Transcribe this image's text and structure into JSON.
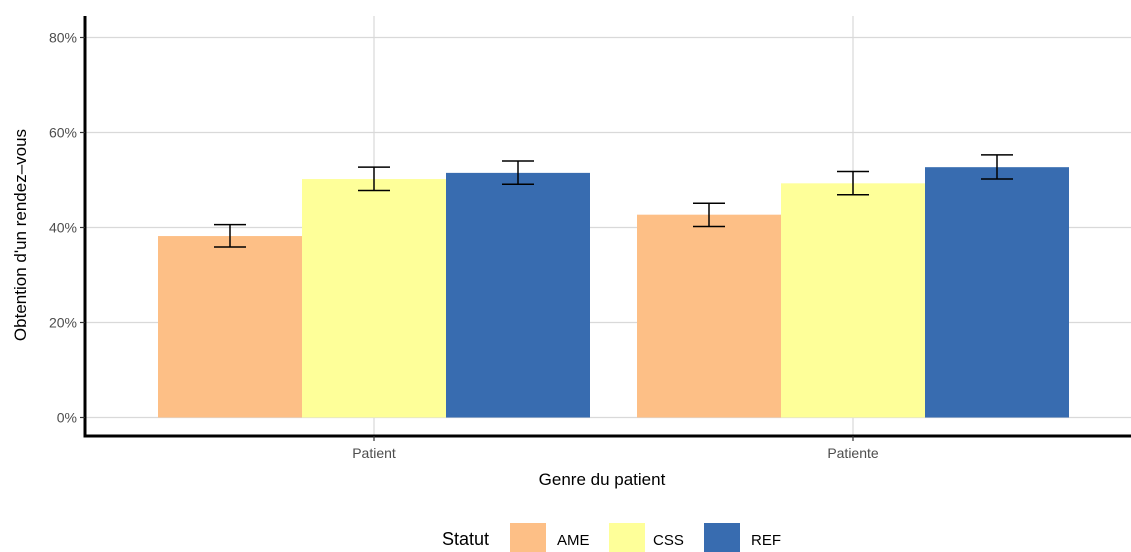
{
  "chart_data": {
    "type": "bar",
    "xlabel": "Genre du patient",
    "ylabel": "Obtention d'un rendez–vous",
    "ylim": [
      0,
      0.8
    ],
    "yticks": [
      0,
      0.2,
      0.4,
      0.6,
      0.8
    ],
    "ytick_labels": [
      "0%",
      "20%",
      "40%",
      "60%",
      "80%"
    ],
    "categories": [
      "Patient",
      "Patiente"
    ],
    "series": [
      {
        "name": "AME",
        "color": "#FDBF86",
        "values": [
          0.382,
          0.427
        ],
        "err_low": [
          0.359,
          0.402
        ],
        "err_high": [
          0.406,
          0.451
        ]
      },
      {
        "name": "CSS",
        "color": "#FEFF99",
        "values": [
          0.502,
          0.493
        ],
        "err_low": [
          0.478,
          0.469
        ],
        "err_high": [
          0.527,
          0.518
        ]
      },
      {
        "name": "REF",
        "color": "#386CB0",
        "values": [
          0.515,
          0.527
        ],
        "err_low": [
          0.491,
          0.502
        ],
        "err_high": [
          0.54,
          0.553
        ]
      }
    ],
    "grid": true,
    "legend": {
      "title": "Statut",
      "position": "bottom"
    }
  }
}
